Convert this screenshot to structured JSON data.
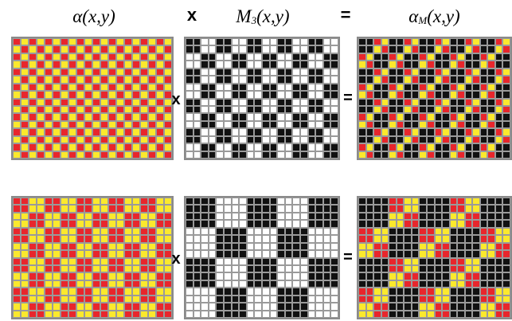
{
  "headers": {
    "alpha": {
      "fn": "α",
      "args": "(x,y)"
    },
    "times": "x",
    "mask": {
      "fn": "M",
      "sub": "3",
      "args": "(x,y)"
    },
    "equals": "=",
    "result": {
      "fn": "α",
      "sub": "M",
      "args": "(x,y)"
    }
  },
  "operators": {
    "times": "x",
    "equals": "="
  },
  "colors": {
    "red": "#e8262c",
    "yellow": "#fbe92d",
    "black": "#111111",
    "white": "#ffffff",
    "border": "#8a8a8a"
  },
  "grid": {
    "cols": 20,
    "rows": 16
  },
  "rows": [
    {
      "alpha_block": 1,
      "mask_block": 2
    },
    {
      "alpha_block": 2,
      "mask_block": 4
    }
  ]
}
